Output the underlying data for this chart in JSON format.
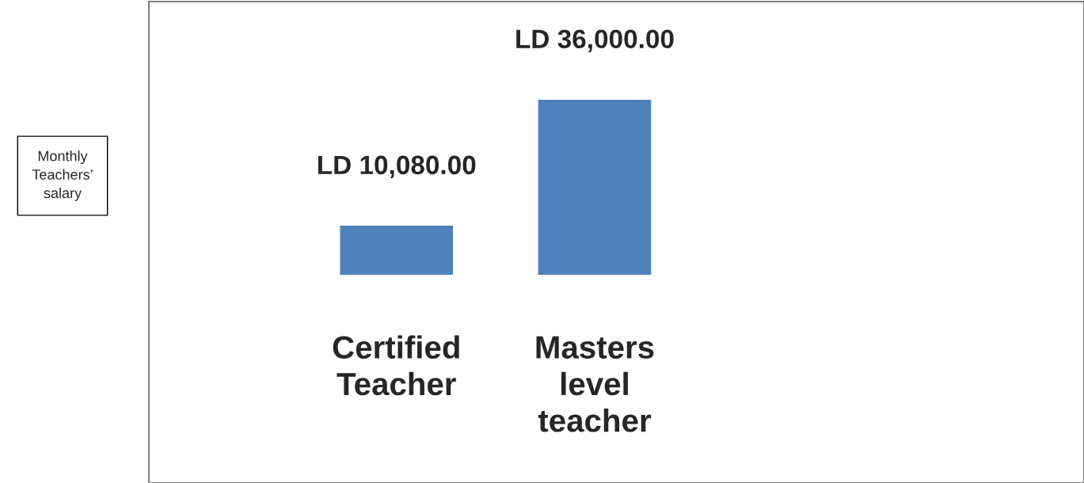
{
  "chart_data": {
    "type": "bar",
    "annotations": [
      "Monthly Teachers’ salary"
    ],
    "categories": [
      "Certified Teacher",
      "Masters level teacher"
    ],
    "values": [
      10080,
      36000
    ],
    "value_labels": [
      "LD 10,080.00",
      "LD 36,000.00"
    ],
    "color": "#4f81bd"
  }
}
